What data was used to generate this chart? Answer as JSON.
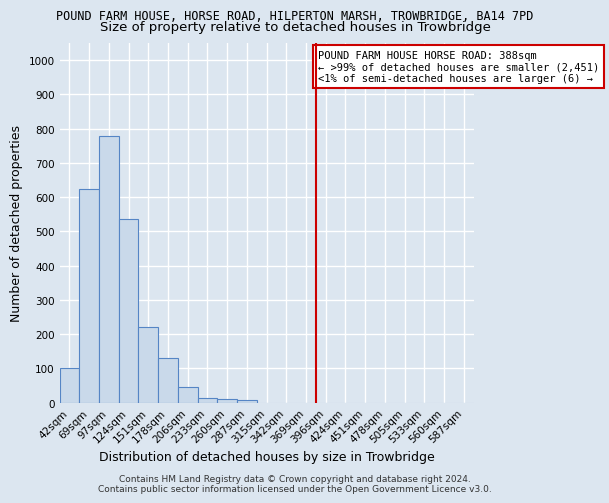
{
  "title1": "POUND FARM HOUSE, HORSE ROAD, HILPERTON MARSH, TROWBRIDGE, BA14 7PD",
  "title2": "Size of property relative to detached houses in Trowbridge",
  "xlabel": "Distribution of detached houses by size in Trowbridge",
  "ylabel": "Number of detached properties",
  "bar_labels": [
    "42sqm",
    "69sqm",
    "97sqm",
    "124sqm",
    "151sqm",
    "178sqm",
    "206sqm",
    "233sqm",
    "260sqm",
    "287sqm",
    "315sqm",
    "342sqm",
    "369sqm",
    "396sqm",
    "424sqm",
    "451sqm",
    "478sqm",
    "505sqm",
    "533sqm",
    "560sqm",
    "587sqm"
  ],
  "bar_values": [
    100,
    625,
    780,
    535,
    220,
    130,
    45,
    15,
    10,
    8,
    0,
    0,
    0,
    0,
    0,
    0,
    0,
    0,
    0,
    0,
    0
  ],
  "bar_color": "#c9d9ea",
  "bar_edge_color": "#5585c5",
  "ylim": [
    0,
    1050
  ],
  "yticks": [
    0,
    100,
    200,
    300,
    400,
    500,
    600,
    700,
    800,
    900,
    1000
  ],
  "red_line_index": 13,
  "red_line_color": "#cc0000",
  "annotation_line1": "POUND FARM HOUSE HORSE ROAD: 388sqm",
  "annotation_line2": "← >99% of detached houses are smaller (2,451)",
  "annotation_line3": "<1% of semi-detached houses are larger (6) →",
  "footer": "Contains HM Land Registry data © Crown copyright and database right 2024.\nContains public sector information licensed under the Open Government Licence v3.0.",
  "background_color": "#dce6f0",
  "plot_background_color": "#dce6f0",
  "grid_color": "#ffffff",
  "title1_fontsize": 8.5,
  "title2_fontsize": 9.5,
  "tick_fontsize": 7.5,
  "label_fontsize": 9,
  "footer_fontsize": 6.5
}
